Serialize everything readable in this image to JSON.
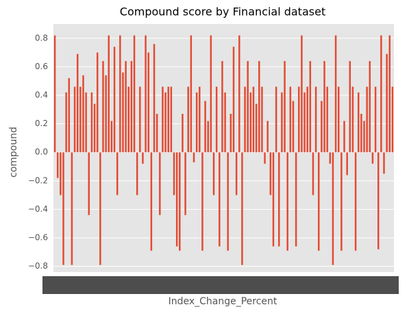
{
  "chart_data": {
    "type": "bar",
    "title": "Compound score by Financial dataset",
    "x_label": "Index_Change_Percent",
    "y_label": "compound",
    "categories": [
      null,
      null,
      null,
      null,
      null,
      null,
      null,
      null,
      null,
      null,
      null,
      null,
      null,
      null,
      null,
      null,
      null,
      null,
      null,
      null,
      null,
      null,
      null,
      null,
      null,
      null,
      null,
      null,
      null,
      null,
      null,
      null,
      null,
      null,
      null,
      null,
      null,
      null,
      null,
      null,
      null,
      null,
      null,
      null,
      null,
      null,
      null,
      null,
      null,
      null,
      null,
      null,
      null,
      null,
      null,
      null,
      null,
      null,
      null,
      null,
      null,
      null,
      null,
      null,
      null,
      null,
      null,
      null,
      null,
      null,
      null,
      null,
      null,
      null,
      null,
      null,
      null,
      null,
      null,
      null,
      null,
      null,
      null,
      null,
      null,
      null,
      null,
      null,
      null,
      null,
      null,
      null,
      null,
      null,
      null,
      null,
      null,
      null,
      null,
      null,
      null,
      null,
      null,
      null,
      null,
      null,
      null,
      null,
      null,
      null,
      null,
      null,
      null,
      null,
      null,
      null,
      null,
      null,
      null,
      null
    ],
    "values": [
      0.82,
      -0.18,
      -0.3,
      -0.79,
      0.42,
      0.52,
      -0.79,
      0.46,
      0.69,
      0.46,
      0.54,
      0.42,
      -0.44,
      0.42,
      0.34,
      0.7,
      -0.79,
      0.64,
      0.54,
      0.82,
      0.22,
      0.74,
      -0.3,
      0.82,
      0.56,
      0.64,
      0.46,
      0.64,
      0.82,
      -0.3,
      0.46,
      -0.08,
      0.82,
      0.7,
      -0.69,
      0.76,
      0.27,
      -0.44,
      0.46,
      0.42,
      0.46,
      0.46,
      -0.3,
      -0.66,
      -0.69,
      0.27,
      -0.44,
      0.46,
      0.82,
      -0.07,
      0.42,
      0.46,
      -0.69,
      0.36,
      0.22,
      0.82,
      -0.3,
      0.46,
      -0.66,
      0.64,
      0.42,
      -0.69,
      0.27,
      0.74,
      -0.3,
      0.82,
      -0.79,
      0.46,
      0.64,
      0.42,
      0.46,
      0.34,
      0.64,
      0.46,
      -0.08,
      0.22,
      -0.3,
      -0.66,
      0.46,
      -0.66,
      0.42,
      0.64,
      -0.69,
      0.46,
      0.36,
      -0.66,
      0.46,
      0.82,
      0.42,
      0.46,
      0.64,
      -0.3,
      0.46,
      -0.69,
      0.36,
      0.64,
      0.46,
      -0.08,
      -0.79,
      0.82,
      0.46,
      -0.69,
      0.22,
      -0.16,
      0.64,
      0.46,
      -0.69,
      0.42,
      0.27,
      0.22,
      0.46,
      0.64,
      -0.08,
      0.46,
      -0.68,
      0.82,
      -0.15,
      0.69,
      0.82,
      0.46
    ],
    "color": "#E24A33",
    "ylim": [
      -0.84,
      0.9
    ],
    "yticks": [
      {
        "value": -0.8,
        "label": "−0.8"
      },
      {
        "value": -0.6,
        "label": "−0.6"
      },
      {
        "value": -0.4,
        "label": "−0.4"
      },
      {
        "value": -0.2,
        "label": "−0.2"
      },
      {
        "value": 0,
        "label": "0.0"
      },
      {
        "value": 0.2,
        "label": "0.2"
      },
      {
        "value": 0.4,
        "label": "0.4"
      },
      {
        "value": 0.6,
        "label": "0.6"
      },
      {
        "value": 0.8,
        "label": "0.8"
      }
    ],
    "grid": true
  }
}
